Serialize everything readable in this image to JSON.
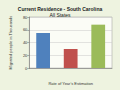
{
  "chart_data": {
    "type": "bar",
    "title": "Current Residence - South Carolina",
    "subtitle": "All States",
    "x_label": "Rate of Year's Estimation",
    "y_label": "Migrated people in Thousands",
    "categories": [
      null,
      null,
      null
    ],
    "values": [
      55,
      30,
      68
    ],
    "colors": [
      "#4f81bd",
      "#c0504d",
      "#9bbb59"
    ],
    "ylim": [
      0,
      80
    ],
    "yticks": [
      0,
      20,
      40,
      60,
      80
    ],
    "grid": true
  }
}
